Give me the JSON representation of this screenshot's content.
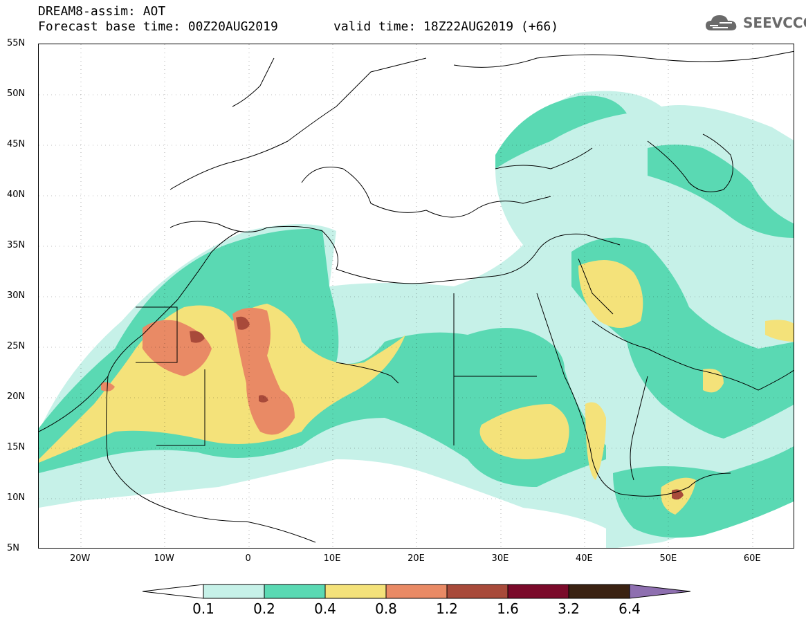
{
  "header": {
    "title": "DREAM8-assim: AOT",
    "base_time": "Forecast base time: 00Z20AUG2019",
    "valid_time": "valid time: 18Z22AUG2019 (+66)",
    "logo_text": "SEEVCCC"
  },
  "map": {
    "lat_labels": [
      "55N",
      "50N",
      "45N",
      "40N",
      "35N",
      "30N",
      "25N",
      "20N",
      "15N",
      "10N",
      "5N"
    ],
    "lon_labels": [
      "20W",
      "10W",
      "0",
      "10E",
      "20E",
      "30E",
      "40E",
      "50E",
      "60E"
    ],
    "extent": {
      "lon_min": -25,
      "lon_max": 65,
      "lat_min": 5,
      "lat_max": 55
    }
  },
  "legend": {
    "labels": [
      "0.1",
      "0.2",
      "0.4",
      "0.8",
      "1.2",
      "1.6",
      "3.2",
      "6.4"
    ],
    "colors": [
      "#ffffff",
      "#c6f1e8",
      "#5ad9b3",
      "#f4e27a",
      "#e98a65",
      "#a84a3a",
      "#7a0a2a",
      "#3a2212",
      "#8e6fb0"
    ]
  }
}
